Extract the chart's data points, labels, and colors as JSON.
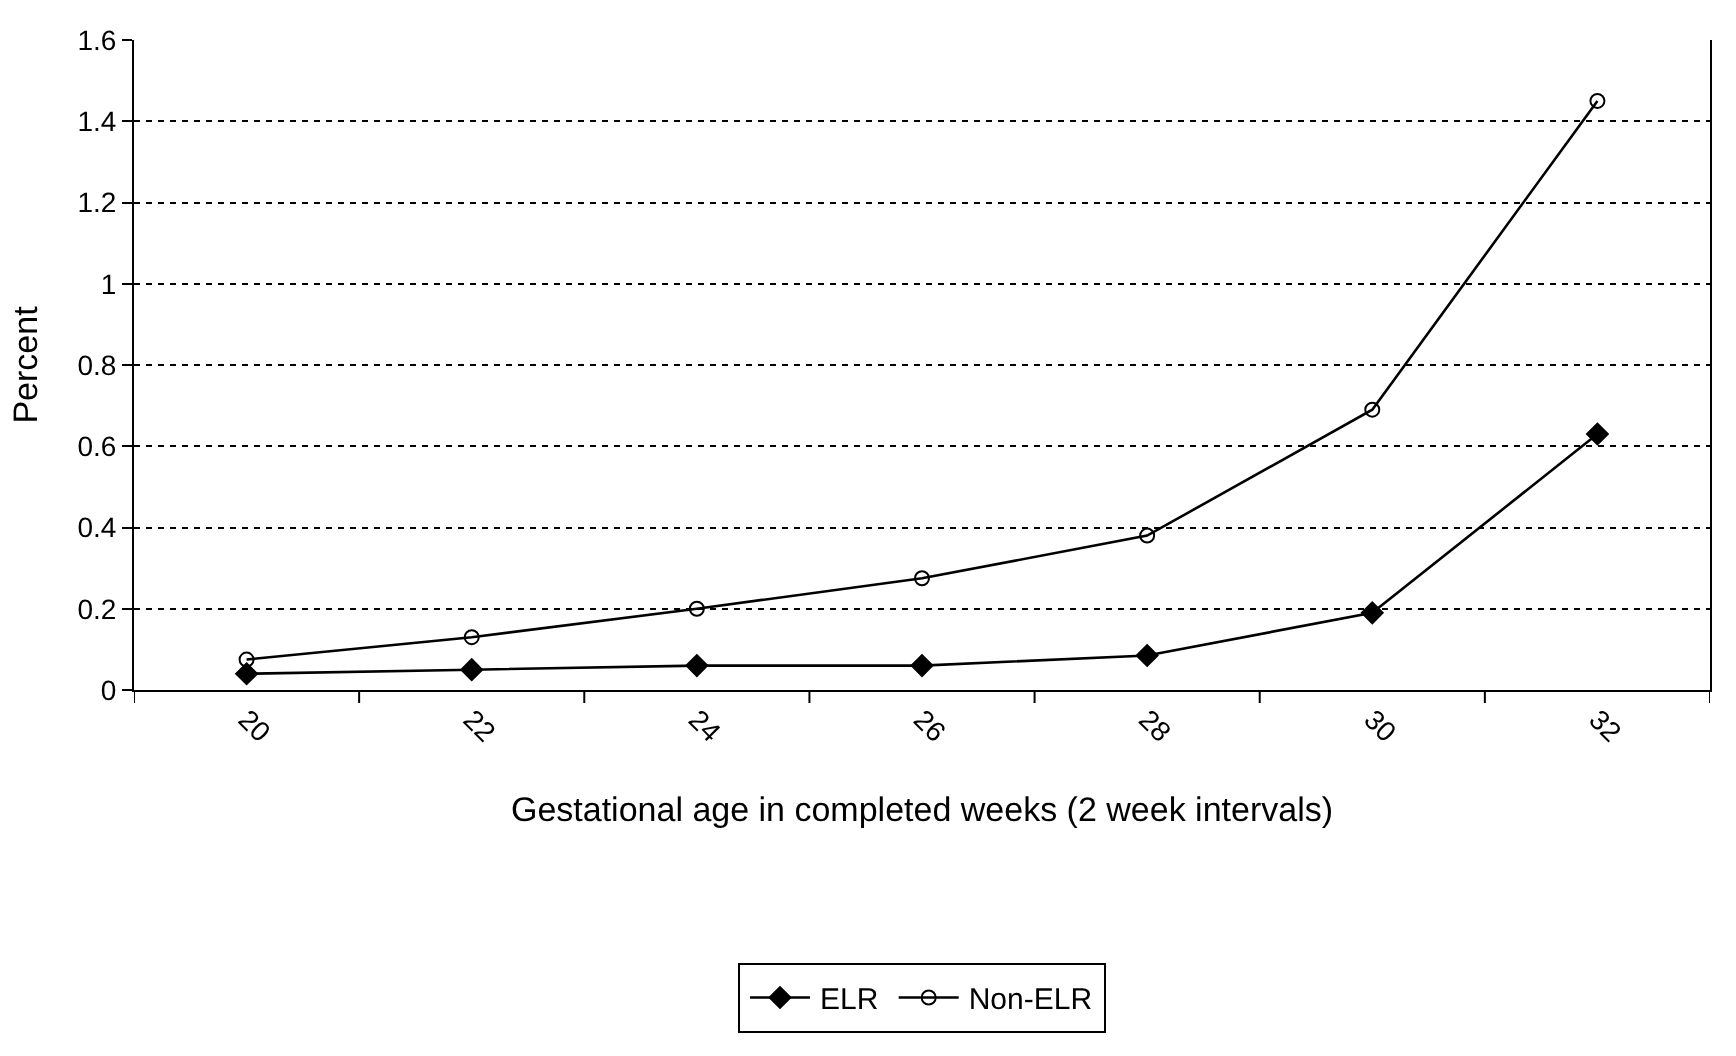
{
  "chart_data": {
    "type": "line",
    "categories": [
      "20",
      "22",
      "24",
      "26",
      "28",
      "30",
      "32"
    ],
    "series": [
      {
        "name": "ELR",
        "color": "#000000",
        "marker": "diamond",
        "values": [
          0.04,
          0.05,
          0.06,
          0.06,
          0.085,
          0.19,
          0.63
        ]
      },
      {
        "name": "Non-ELR",
        "color": "#000000",
        "marker": "circle",
        "values": [
          0.075,
          0.13,
          0.2,
          0.275,
          0.38,
          0.69,
          1.45
        ]
      }
    ],
    "xlabel": "Gestational age in completed weeks (2 week intervals)",
    "ylabel": "Percent",
    "ylim": [
      0,
      1.6
    ],
    "yticks": [
      0,
      0.2,
      0.4,
      0.6,
      0.8,
      1,
      1.2,
      1.4,
      1.6
    ],
    "grid": "y",
    "legend": "bottom",
    "line_style": "solid"
  }
}
